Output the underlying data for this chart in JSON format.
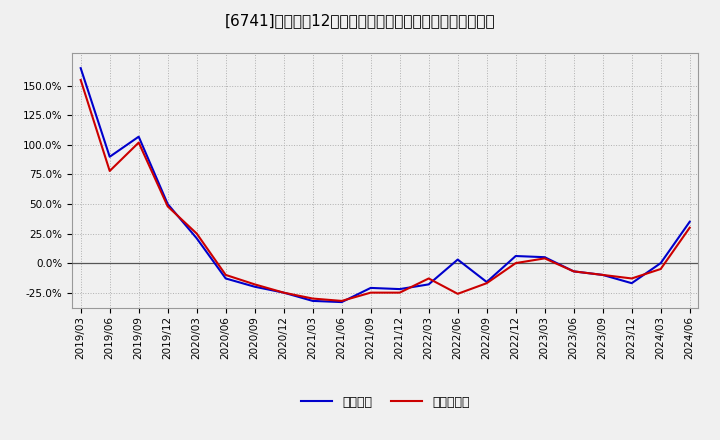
{
  "title": "[6741]　利益だ12か月移動合計の対前年同期増減率の推移",
  "x_labels": [
    "2019/03",
    "2019/06",
    "2019/09",
    "2019/12",
    "2020/03",
    "2020/06",
    "2020/09",
    "2020/12",
    "2021/03",
    "2021/06",
    "2021/09",
    "2021/12",
    "2022/03",
    "2022/06",
    "2022/09",
    "2022/12",
    "2023/03",
    "2023/06",
    "2023/09",
    "2023/12",
    "2024/03",
    "2024/06"
  ],
  "keijo_rieki": [
    1.65,
    0.9,
    1.07,
    0.5,
    0.21,
    -0.13,
    -0.2,
    -0.25,
    -0.32,
    -0.33,
    -0.21,
    -0.22,
    -0.18,
    0.03,
    -0.16,
    0.06,
    0.05,
    -0.07,
    -0.1,
    -0.17,
    0.0,
    0.35
  ],
  "touki_jurieki": [
    1.55,
    0.78,
    1.02,
    0.48,
    0.25,
    -0.1,
    -0.18,
    -0.25,
    -0.3,
    -0.32,
    -0.25,
    -0.25,
    -0.13,
    -0.26,
    -0.17,
    0.0,
    0.04,
    -0.07,
    -0.1,
    -0.13,
    -0.05,
    0.3
  ],
  "ylim": [
    -0.38,
    1.78
  ],
  "yticks": [
    -0.25,
    0.0,
    0.25,
    0.5,
    0.75,
    1.0,
    1.25,
    1.5
  ],
  "line_color_keijo": "#0000cc",
  "line_color_touki": "#cc0000",
  "background_color": "#f0f0f0",
  "plot_bg_color": "#f0f0f0",
  "legend_keijo": "経常利益",
  "legend_touki": "当期純利益",
  "grid_color": "#b0b0b0",
  "zero_line_color": "#555555",
  "title_fontsize": 11,
  "tick_fontsize": 7.5,
  "legend_fontsize": 9
}
